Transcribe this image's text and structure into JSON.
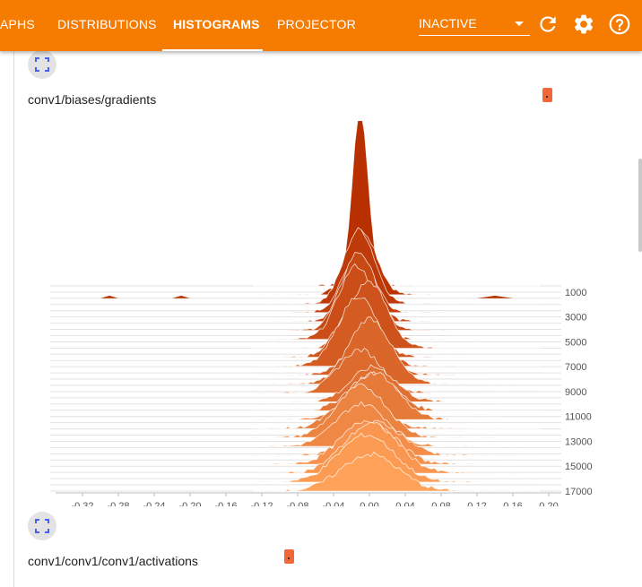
{
  "header": {
    "tabs": [
      {
        "label": "APHS"
      },
      {
        "label": "DISTRIBUTIONS"
      },
      {
        "label": "HISTOGRAMS",
        "active": true
      },
      {
        "label": "PROJECTOR"
      }
    ],
    "run_select": {
      "value": "INACTIVE"
    },
    "icons": [
      "refresh-icon",
      "settings-icon",
      "help-icon"
    ],
    "colors": {
      "bar": "#f57c00",
      "text": "#ffffff"
    }
  },
  "cards": [
    {
      "title": "conv1/biases/gradients",
      "chart_data": {
        "type": "histogram-offset",
        "x_ticks": [
          "-0.32",
          "-0.28",
          "-0.24",
          "-0.20",
          "-0.16",
          "-0.12",
          "-0.08",
          "-0.04",
          "0.00",
          "0.04",
          "0.08",
          "0.12",
          "0.16",
          "0.20"
        ],
        "y_ticks": [
          "1000",
          "3000",
          "5000",
          "7000",
          "9000",
          "11000",
          "13000",
          "15000",
          "17000"
        ],
        "xlim": [
          -0.34,
          0.21
        ],
        "ylim": [
          0,
          17000
        ],
        "colors": {
          "oldest": "#b83000",
          "newest": "#ffa158"
        }
      }
    },
    {
      "title": "conv1/conv1/conv1/activations"
    }
  ]
}
